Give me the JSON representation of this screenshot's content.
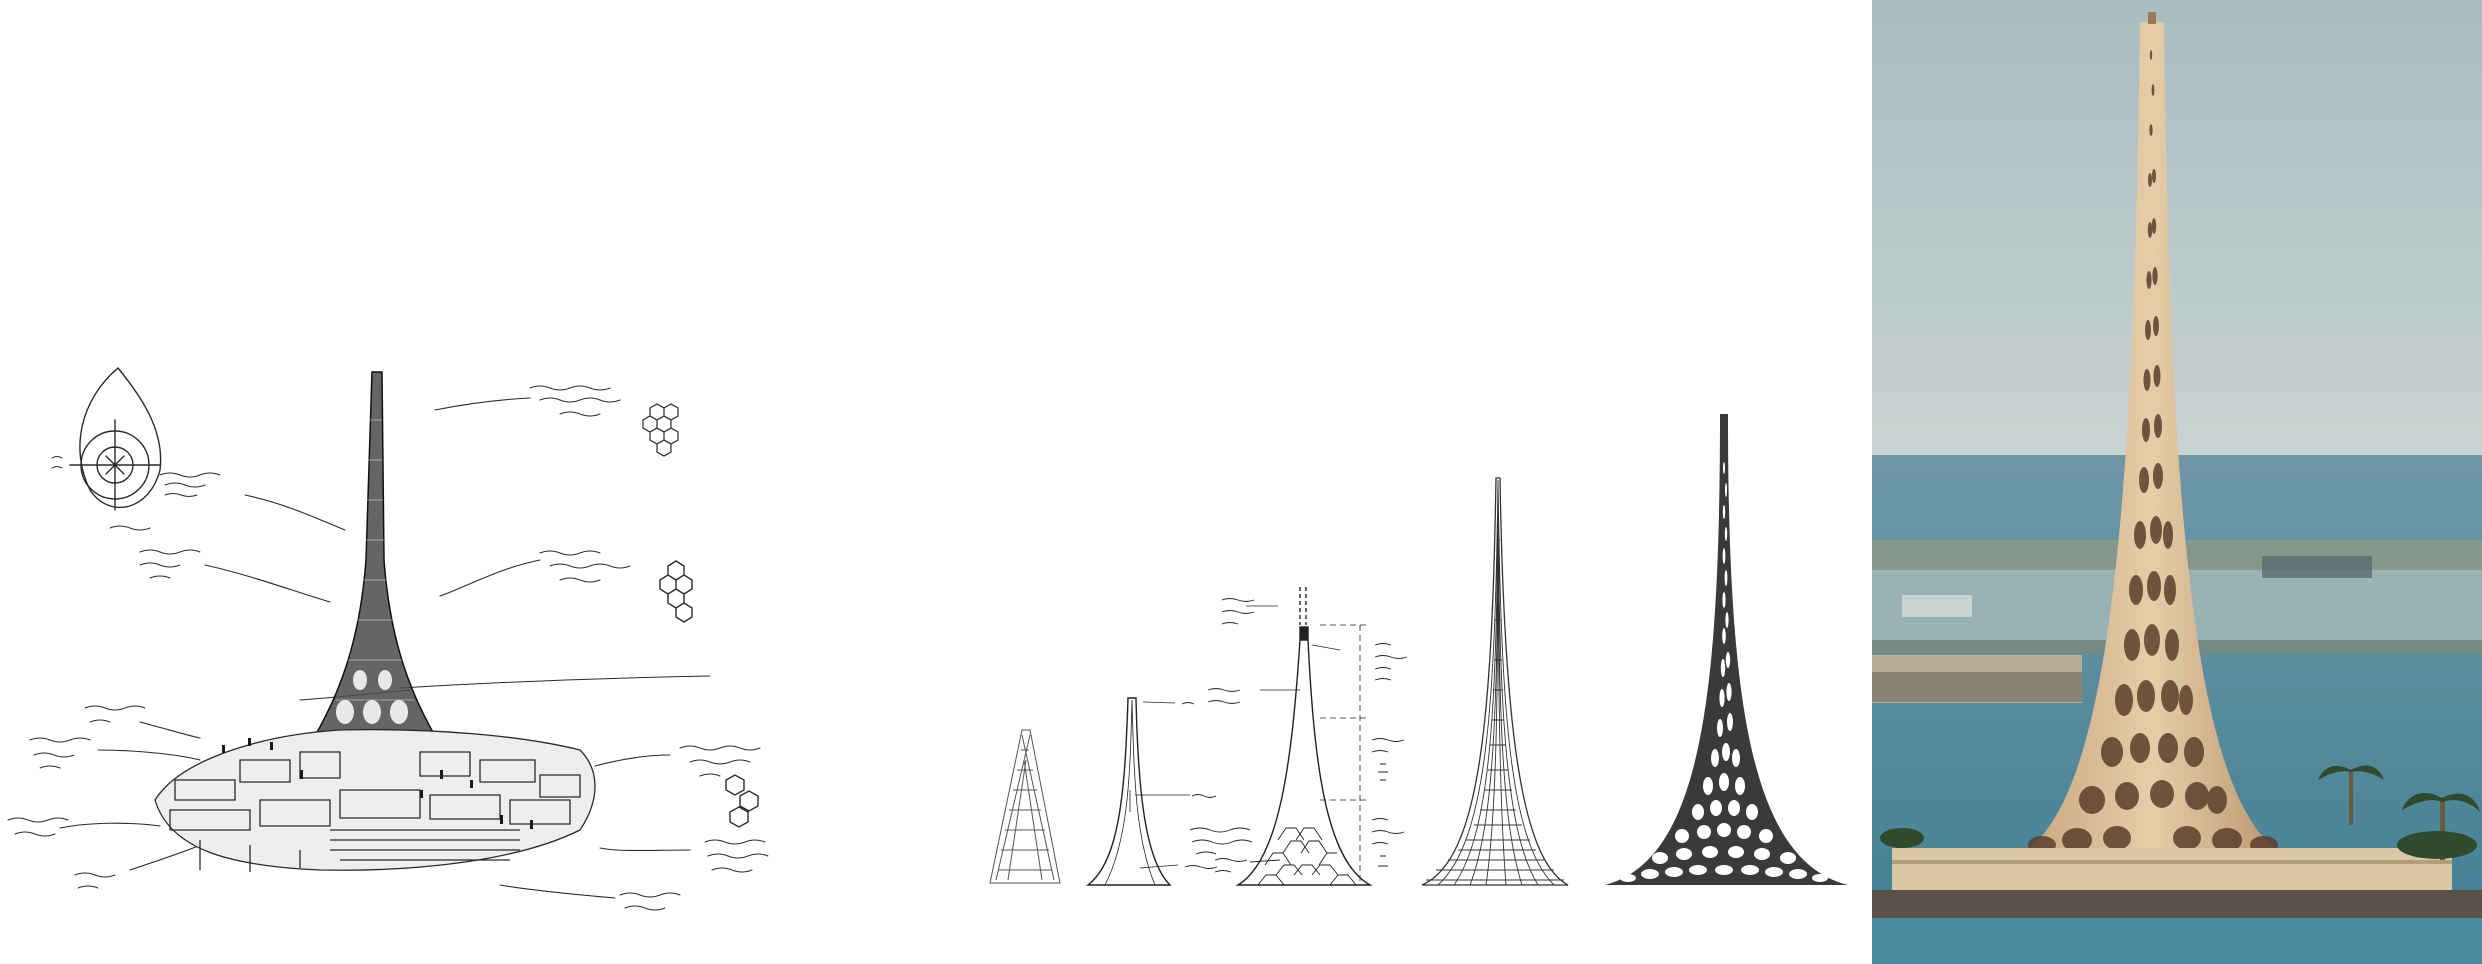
{
  "figure": {
    "panels": [
      {
        "id": "concept-sketch",
        "type": "hand-drawn sketch"
      },
      {
        "id": "form-evolution",
        "type": "line drawings",
        "stages": 5
      },
      {
        "id": "built-photo",
        "type": "photograph"
      }
    ]
  },
  "colors": {
    "background": "#ffffff",
    "ink": "#2a2a2a",
    "sky": "#b8c8cc",
    "sea": "#4f8ea0",
    "tower": "#d7b995",
    "rock": "#5a5248"
  },
  "icons": [
    "hexagon-cluster-icon",
    "hexagon-cluster-icon",
    "hexagon-cluster-icon",
    "arrow-icon"
  ]
}
